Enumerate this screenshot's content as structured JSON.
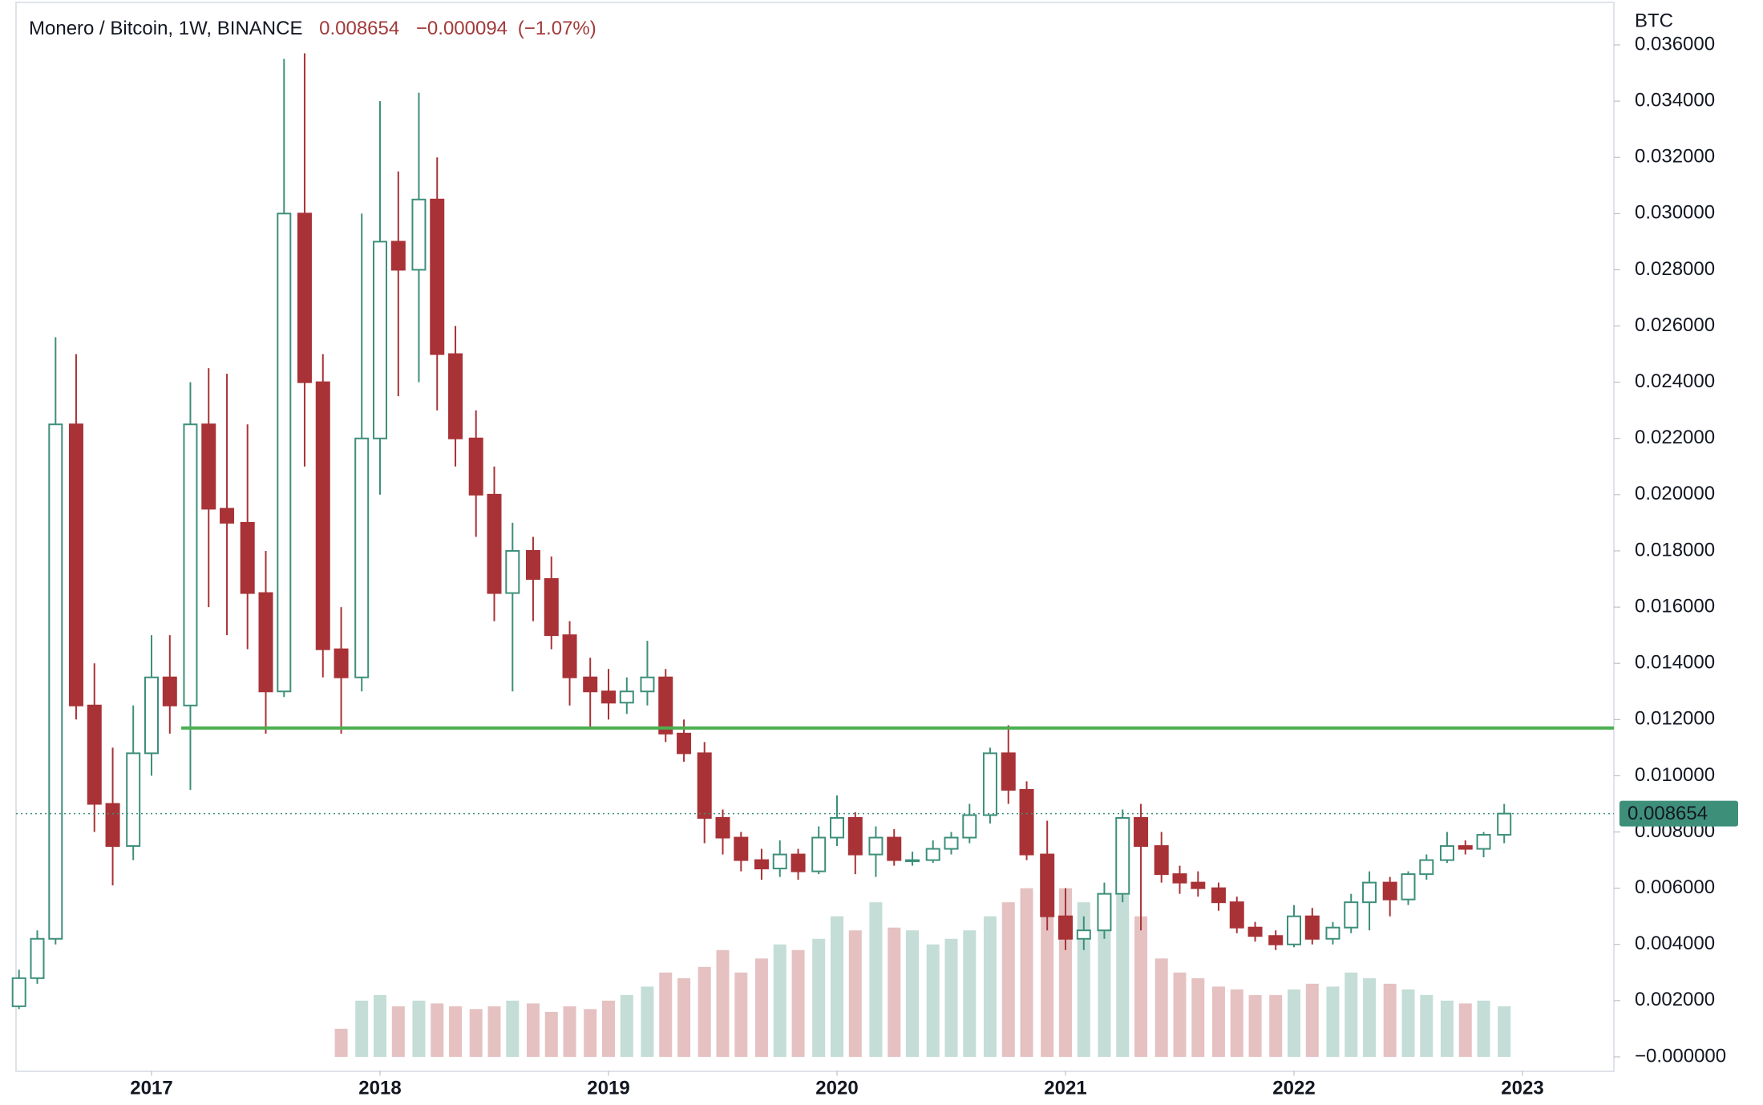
{
  "chart_data": {
    "type": "candlestick",
    "title": "Monero / Bitcoin, 1W, BINANCE",
    "last": 0.008654,
    "change": {
      "value": -9.4e-05,
      "label": "−0.000094"
    },
    "change_pct": {
      "value": -1.07,
      "label": "(−1.07%)"
    },
    "y_unit": "BTC",
    "up_color": "#3d8f7a",
    "down_color": "#a83236",
    "xlim": [
      2016.407,
      2023.4
    ],
    "xticks": [
      2017,
      2018,
      2019,
      2020,
      2021,
      2022,
      2023
    ],
    "ylim": [
      -0.0005,
      0.0375
    ],
    "yticks": [
      {
        "value": 0,
        "label": "−0.000000"
      },
      {
        "value": 0.002,
        "label": "0.002000"
      },
      {
        "value": 0.004,
        "label": "0.004000"
      },
      {
        "value": 0.006,
        "label": "0.006000"
      },
      {
        "value": 0.008,
        "label": "0.008000"
      },
      {
        "value": 0.01,
        "label": "0.010000"
      },
      {
        "value": 0.012,
        "label": "0.012000"
      },
      {
        "value": 0.014,
        "label": "0.014000"
      },
      {
        "value": 0.016,
        "label": "0.016000"
      },
      {
        "value": 0.018,
        "label": "0.018000"
      },
      {
        "value": 0.02,
        "label": "0.020000"
      },
      {
        "value": 0.022,
        "label": "0.022000"
      },
      {
        "value": 0.024,
        "label": "0.024000"
      },
      {
        "value": 0.026,
        "label": "0.026000"
      },
      {
        "value": 0.028,
        "label": "0.028000"
      },
      {
        "value": 0.03,
        "label": "0.030000"
      },
      {
        "value": 0.032,
        "label": "0.032000"
      },
      {
        "value": 0.034,
        "label": "0.034000"
      },
      {
        "value": 0.036,
        "label": "0.036000"
      }
    ],
    "support_line": {
      "value": 0.0117,
      "from": 2017.13,
      "color": "#4caf50"
    },
    "x": [
      2016.42,
      2016.5,
      2016.58,
      2016.67,
      2016.75,
      2016.83,
      2016.92,
      2017.0,
      2017.08,
      2017.17,
      2017.25,
      2017.33,
      2017.42,
      2017.5,
      2017.58,
      2017.67,
      2017.75,
      2017.83,
      2017.92,
      2018.0,
      2018.08,
      2018.17,
      2018.25,
      2018.33,
      2018.42,
      2018.5,
      2018.58,
      2018.67,
      2018.75,
      2018.83,
      2018.92,
      2019.0,
      2019.08,
      2019.17,
      2019.25,
      2019.33,
      2019.42,
      2019.5,
      2019.58,
      2019.67,
      2019.75,
      2019.83,
      2019.92,
      2020.0,
      2020.08,
      2020.17,
      2020.25,
      2020.33,
      2020.42,
      2020.5,
      2020.58,
      2020.67,
      2020.75,
      2020.83,
      2020.92,
      2021.0,
      2021.08,
      2021.17,
      2021.25,
      2021.33,
      2021.42,
      2021.5,
      2021.58,
      2021.67,
      2021.75,
      2021.83,
      2021.92,
      2022.0,
      2022.08,
      2022.17,
      2022.25,
      2022.33,
      2022.42,
      2022.5,
      2022.58,
      2022.67,
      2022.75,
      2022.83,
      2022.92
    ],
    "open": [
      0.0018,
      0.0028,
      0.0042,
      0.0225,
      0.0125,
      0.009,
      0.0075,
      0.0108,
      0.0135,
      0.0125,
      0.0225,
      0.0195,
      0.019,
      0.0165,
      0.013,
      0.03,
      0.024,
      0.0145,
      0.0135,
      0.022,
      0.029,
      0.028,
      0.0305,
      0.025,
      0.022,
      0.02,
      0.0165,
      0.018,
      0.017,
      0.015,
      0.0135,
      0.013,
      0.0126,
      0.013,
      0.0135,
      0.0115,
      0.0108,
      0.0085,
      0.0078,
      0.007,
      0.0067,
      0.0072,
      0.0066,
      0.0078,
      0.0085,
      0.0072,
      0.0078,
      0.007,
      0.007,
      0.0074,
      0.0078,
      0.0086,
      0.0108,
      0.0095,
      0.0072,
      0.005,
      0.0042,
      0.0045,
      0.0058,
      0.0085,
      0.0075,
      0.0065,
      0.0062,
      0.006,
      0.0055,
      0.0046,
      0.0043,
      0.004,
      0.005,
      0.0042,
      0.0046,
      0.0055,
      0.0062,
      0.0056,
      0.0065,
      0.007,
      0.0075,
      0.0074,
      0.0079
    ],
    "high": [
      0.0031,
      0.0045,
      0.0256,
      0.025,
      0.014,
      0.011,
      0.0125,
      0.015,
      0.015,
      0.024,
      0.0245,
      0.0243,
      0.0225,
      0.018,
      0.0355,
      0.0357,
      0.025,
      0.016,
      0.03,
      0.034,
      0.0315,
      0.0343,
      0.032,
      0.026,
      0.023,
      0.021,
      0.019,
      0.0185,
      0.0178,
      0.0155,
      0.0142,
      0.0138,
      0.0135,
      0.0148,
      0.0138,
      0.012,
      0.0112,
      0.0088,
      0.008,
      0.0074,
      0.0077,
      0.0074,
      0.0082,
      0.0093,
      0.0087,
      0.0082,
      0.0081,
      0.0073,
      0.0077,
      0.008,
      0.009,
      0.011,
      0.0118,
      0.0098,
      0.0084,
      0.006,
      0.005,
      0.0062,
      0.0088,
      0.009,
      0.008,
      0.0068,
      0.0066,
      0.0062,
      0.0057,
      0.0048,
      0.0045,
      0.0054,
      0.0053,
      0.0048,
      0.0058,
      0.0066,
      0.0064,
      0.0066,
      0.0072,
      0.008,
      0.0077,
      0.008,
      0.009
    ],
    "low": [
      0.0017,
      0.0026,
      0.004,
      0.012,
      0.008,
      0.0061,
      0.007,
      0.01,
      0.0115,
      0.0095,
      0.016,
      0.015,
      0.0145,
      0.0115,
      0.0128,
      0.021,
      0.0135,
      0.0115,
      0.013,
      0.02,
      0.0235,
      0.024,
      0.023,
      0.021,
      0.0185,
      0.0155,
      0.013,
      0.0155,
      0.0145,
      0.0125,
      0.0117,
      0.012,
      0.0122,
      0.0125,
      0.0112,
      0.0105,
      0.0076,
      0.0072,
      0.0066,
      0.0063,
      0.0064,
      0.0063,
      0.0065,
      0.0075,
      0.0065,
      0.0064,
      0.0068,
      0.0068,
      0.0069,
      0.0072,
      0.0076,
      0.0083,
      0.009,
      0.007,
      0.0045,
      0.0038,
      0.0038,
      0.0042,
      0.0055,
      0.0045,
      0.0062,
      0.0058,
      0.0057,
      0.0052,
      0.0044,
      0.0041,
      0.0038,
      0.0039,
      0.004,
      0.004,
      0.0044,
      0.0045,
      0.005,
      0.0054,
      0.0063,
      0.0069,
      0.0072,
      0.0071,
      0.0076
    ],
    "close": [
      0.0028,
      0.0042,
      0.0225,
      0.0125,
      0.009,
      0.0075,
      0.0108,
      0.0135,
      0.0125,
      0.0225,
      0.0195,
      0.019,
      0.0165,
      0.013,
      0.03,
      0.024,
      0.0145,
      0.0135,
      0.022,
      0.029,
      0.028,
      0.0305,
      0.025,
      0.022,
      0.02,
      0.0165,
      0.018,
      0.017,
      0.015,
      0.0135,
      0.013,
      0.0126,
      0.013,
      0.0135,
      0.0115,
      0.0108,
      0.0085,
      0.0078,
      0.007,
      0.0067,
      0.0072,
      0.0066,
      0.0078,
      0.0085,
      0.0072,
      0.0078,
      0.007,
      0.007,
      0.0074,
      0.0078,
      0.0086,
      0.0108,
      0.0095,
      0.0072,
      0.005,
      0.0042,
      0.0045,
      0.0058,
      0.0085,
      0.0075,
      0.0065,
      0.0062,
      0.006,
      0.0055,
      0.0046,
      0.0043,
      0.004,
      0.005,
      0.0042,
      0.0046,
      0.0055,
      0.0062,
      0.0056,
      0.0065,
      0.007,
      0.0075,
      0.0074,
      0.0079,
      0.008654
    ],
    "volume": [
      0,
      0,
      0,
      0,
      0,
      0,
      0,
      0,
      0,
      0,
      0,
      0,
      0,
      0,
      0,
      0,
      0,
      0.001,
      0.002,
      0.0022,
      0.0018,
      0.002,
      0.0019,
      0.0018,
      0.0017,
      0.0018,
      0.002,
      0.0019,
      0.0016,
      0.0018,
      0.0017,
      0.002,
      0.0022,
      0.0025,
      0.003,
      0.0028,
      0.0032,
      0.0038,
      0.003,
      0.0035,
      0.004,
      0.0038,
      0.0042,
      0.005,
      0.0045,
      0.0055,
      0.0046,
      0.0045,
      0.004,
      0.0042,
      0.0045,
      0.005,
      0.0055,
      0.006,
      0.0065,
      0.006,
      0.0055,
      0.0058,
      0.0062,
      0.005,
      0.0035,
      0.003,
      0.0028,
      0.0025,
      0.0024,
      0.0022,
      0.0022,
      0.0024,
      0.0026,
      0.0025,
      0.003,
      0.0028,
      0.0026,
      0.0024,
      0.0022,
      0.002,
      0.0019,
      0.002,
      0.0018
    ]
  }
}
